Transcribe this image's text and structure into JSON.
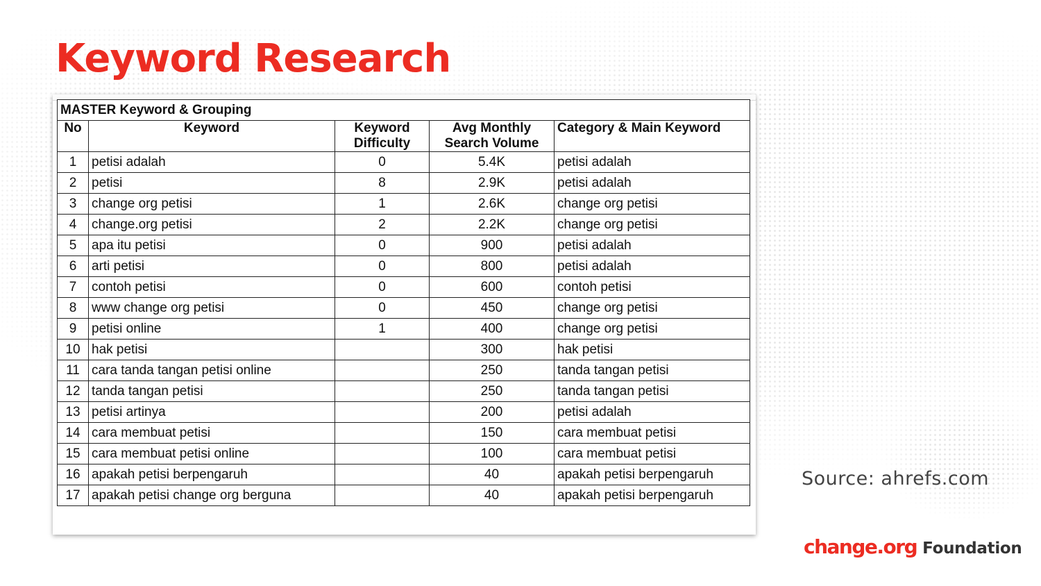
{
  "slide": {
    "title": "Keyword Research",
    "source": "Source: ahrefs.com",
    "logo": {
      "main": "change.org",
      "sub": "Foundation"
    },
    "colors": {
      "accent": "#ec2c22"
    }
  },
  "table": {
    "title": "MASTER Keyword & Grouping",
    "headers": {
      "no": "No",
      "keyword": "Keyword",
      "difficulty_1": "Keyword",
      "difficulty_2": "Difficulty",
      "volume_1": "Avg Monthly",
      "volume_2": "Search Volume",
      "category": "Category & Main Keyword"
    },
    "rows": [
      {
        "no": "1",
        "keyword": "petisi adalah",
        "difficulty": "0",
        "volume": "5.4K",
        "category": "petisi adalah"
      },
      {
        "no": "2",
        "keyword": "petisi",
        "difficulty": "8",
        "volume": "2.9K",
        "category": "petisi adalah"
      },
      {
        "no": "3",
        "keyword": "change org petisi",
        "difficulty": "1",
        "volume": "2.6K",
        "category": "change org petisi"
      },
      {
        "no": "4",
        "keyword": "change.org petisi",
        "difficulty": "2",
        "volume": "2.2K",
        "category": "change org petisi"
      },
      {
        "no": "5",
        "keyword": "apa itu petisi",
        "difficulty": "0",
        "volume": "900",
        "category": "petisi adalah"
      },
      {
        "no": "6",
        "keyword": "arti petisi",
        "difficulty": "0",
        "volume": "800",
        "category": "petisi adalah"
      },
      {
        "no": "7",
        "keyword": "contoh petisi",
        "difficulty": "0",
        "volume": "600",
        "category": "contoh petisi"
      },
      {
        "no": "8",
        "keyword": "www change org petisi",
        "difficulty": "0",
        "volume": "450",
        "category": "change org petisi"
      },
      {
        "no": "9",
        "keyword": "petisi online",
        "difficulty": "1",
        "volume": "400",
        "category": "change org petisi"
      },
      {
        "no": "10",
        "keyword": "hak petisi",
        "difficulty": "",
        "volume": "300",
        "category": "hak petisi"
      },
      {
        "no": "11",
        "keyword": "cara tanda tangan petisi online",
        "difficulty": "",
        "volume": "250",
        "category": "tanda tangan petisi"
      },
      {
        "no": "12",
        "keyword": "tanda tangan petisi",
        "difficulty": "",
        "volume": "250",
        "category": "tanda tangan petisi"
      },
      {
        "no": "13",
        "keyword": "petisi artinya",
        "difficulty": "",
        "volume": "200",
        "category": "petisi adalah"
      },
      {
        "no": "14",
        "keyword": "cara membuat petisi",
        "difficulty": "",
        "volume": "150",
        "category": "cara membuat petisi"
      },
      {
        "no": "15",
        "keyword": "cara membuat petisi online",
        "difficulty": "",
        "volume": "100",
        "category": "cara membuat petisi"
      },
      {
        "no": "16",
        "keyword": "apakah petisi berpengaruh",
        "difficulty": "",
        "volume": "40",
        "category": "apakah petisi berpengaruh"
      },
      {
        "no": "17",
        "keyword": "apakah petisi change org berguna",
        "difficulty": "",
        "volume": "40",
        "category": "apakah petisi berpengaruh"
      }
    ]
  }
}
